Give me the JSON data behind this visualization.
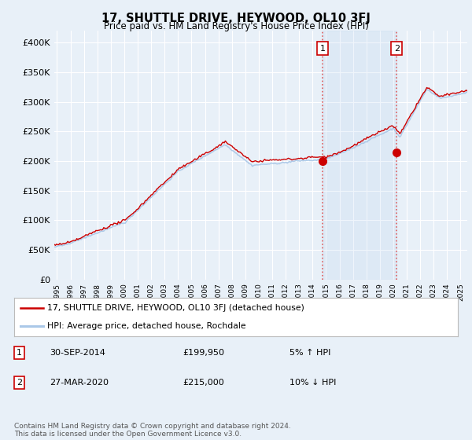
{
  "title": "17, SHUTTLE DRIVE, HEYWOOD, OL10 3FJ",
  "subtitle": "Price paid vs. HM Land Registry's House Price Index (HPI)",
  "ylabel_ticks": [
    "£0",
    "£50K",
    "£100K",
    "£150K",
    "£200K",
    "£250K",
    "£300K",
    "£350K",
    "£400K"
  ],
  "ytick_values": [
    0,
    50000,
    100000,
    150000,
    200000,
    250000,
    300000,
    350000,
    400000
  ],
  "ylim": [
    0,
    420000
  ],
  "xlim_start": 1994.8,
  "xlim_end": 2025.5,
  "hpi_color": "#aac8e8",
  "hpi_fill_color": "#ddeeff",
  "price_color": "#cc0000",
  "vline_color": "#e06060",
  "vline_style": ":",
  "sale1_t": 2014.75,
  "sale1_v": 199950,
  "sale2_t": 2020.25,
  "sale2_v": 215000,
  "legend_line1": "17, SHUTTLE DRIVE, HEYWOOD, OL10 3FJ (detached house)",
  "legend_line2": "HPI: Average price, detached house, Rochdale",
  "note1_box": "1",
  "note1_date": "30-SEP-2014",
  "note1_price": "£199,950",
  "note1_hpi": "5% ↑ HPI",
  "note2_box": "2",
  "note2_date": "27-MAR-2020",
  "note2_price": "£215,000",
  "note2_hpi": "10% ↓ HPI",
  "footer": "Contains HM Land Registry data © Crown copyright and database right 2024.\nThis data is licensed under the Open Government Licence v3.0.",
  "background_color": "#e8f0f8",
  "plot_bg_color": "#e8f0f8",
  "grid_color": "#ffffff"
}
